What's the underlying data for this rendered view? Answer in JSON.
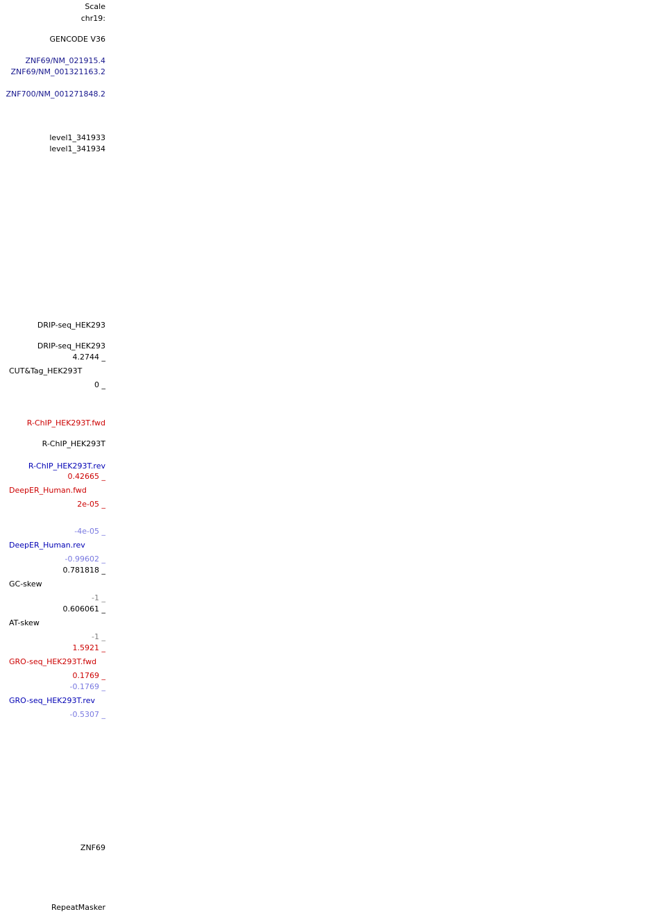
{
  "labels": [
    "Scale",
    "chr19:",
    "GENCODE V36",
    "ZNF69/NM_021915.4",
    "ZNF69/NM_001321163.2",
    "ZNF700/NM_001271848.2",
    "level1_341933",
    "level1_341934",
    "DRIP-seq_HEK293",
    "DRIP-seq_HEK293",
    "4.2744 _",
    "CUT&Tag_HEK293T",
    "0 _",
    "R-ChIP_HEK293T.fwd",
    "R-ChIP_HEK293T",
    "R-ChIP_HEK293T.rev",
    "0.42665 _",
    "DeepER_Human.fwd",
    "2e-05 _",
    "-4e-05 _",
    "DeepER_Human.rev",
    "-0.99602 _",
    "0.781818 _",
    "GC-skew",
    "-1 _",
    "0.606061 _",
    "AT-skew",
    "-1 _",
    "1.5921 _",
    "GRO-seq_HEK293T.fwd",
    "0.1769 _",
    "-0.1769 _",
    "GRO-seq_HEK293T.rev",
    "-0.5307 _",
    "ZNF69",
    "RepeatMasker"
  ]
}
